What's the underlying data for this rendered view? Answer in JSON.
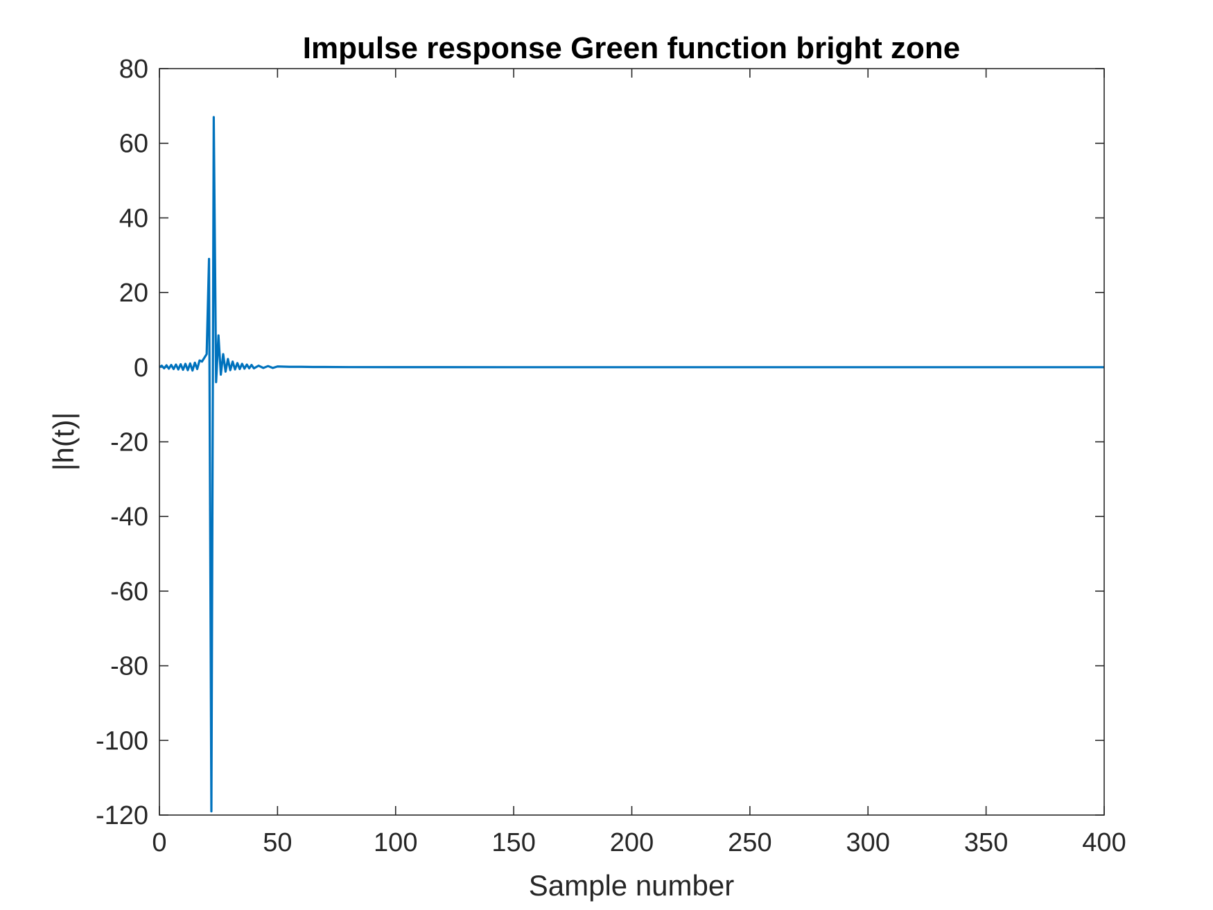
{
  "chart_data": {
    "type": "line",
    "title": "Impulse response Green function bright zone",
    "xlabel": "Sample number",
    "ylabel": "|h(t)|",
    "xlim": [
      0,
      400
    ],
    "ylim": [
      -120,
      80
    ],
    "xticks": [
      0,
      50,
      100,
      150,
      200,
      250,
      300,
      350,
      400
    ],
    "yticks": [
      -120,
      -100,
      -80,
      -60,
      -40,
      -20,
      0,
      20,
      40,
      60,
      80
    ],
    "xtick_labels": [
      "0",
      "50",
      "100",
      "150",
      "200",
      "250",
      "300",
      "350",
      "400"
    ],
    "ytick_labels": [
      "-120",
      "-100",
      "-80",
      "-60",
      "-40",
      "-20",
      "0",
      "20",
      "40",
      "60",
      "80"
    ],
    "grid": false,
    "line_color": "#0072BD",
    "series": [
      {
        "x": [
          0,
          1,
          2,
          3,
          4,
          5,
          6,
          7,
          8,
          9,
          10,
          11,
          12,
          13,
          14,
          15,
          16,
          17,
          18,
          19,
          20,
          21,
          22,
          23,
          24,
          25,
          26,
          27,
          28,
          29,
          30,
          31,
          32,
          33,
          34,
          35,
          36,
          37,
          38,
          39,
          40,
          42,
          44,
          46,
          48,
          50,
          55,
          60,
          65,
          70,
          80,
          100,
          150,
          200,
          250,
          300,
          350,
          400
        ],
        "values": [
          0,
          0.4,
          -0.3,
          0.5,
          -0.4,
          0.6,
          -0.5,
          0.7,
          -0.6,
          0.8,
          -0.7,
          0.9,
          -0.8,
          1.0,
          -0.9,
          1.2,
          -0.5,
          1.8,
          1.5,
          2.5,
          3.5,
          29,
          -119,
          67,
          -4,
          8.5,
          -2,
          3.5,
          -1.2,
          2.2,
          -0.8,
          1.5,
          -0.6,
          1.1,
          -0.5,
          0.9,
          -0.4,
          0.7,
          -0.3,
          0.6,
          -0.3,
          0.4,
          -0.2,
          0.3,
          -0.2,
          0.2,
          0.1,
          0.1,
          0.05,
          0.05,
          0.02,
          0.01,
          0,
          0,
          0,
          0,
          0,
          0
        ]
      }
    ]
  }
}
